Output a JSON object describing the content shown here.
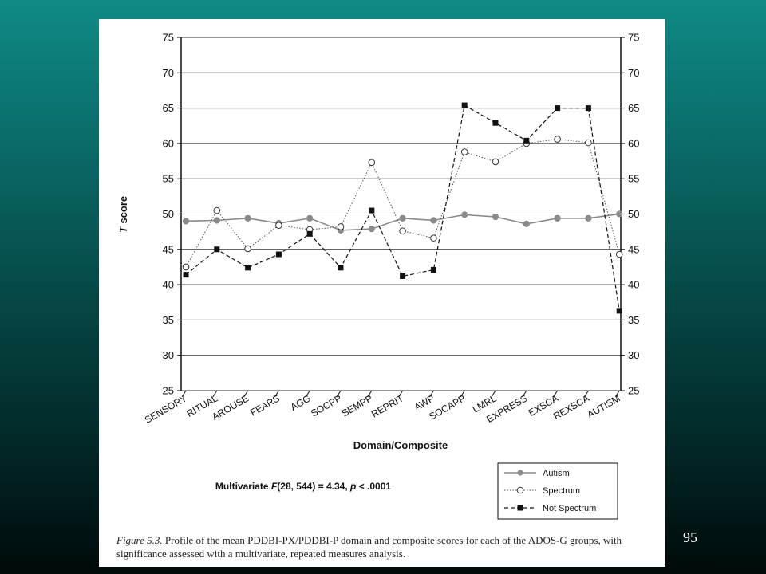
{
  "page": {
    "number": "95"
  },
  "caption": {
    "figure_label": "Figure 5.3.",
    "text": " Profile of the mean PDDBI-PX/PDDBI-P domain and composite scores for each of the ADOS-G groups, with significance assessed with a multivariate, repeated measures analysis."
  },
  "colors": {
    "autism": "#8a8a8a",
    "spectrum": "#555555",
    "not_spectrum": "#111111",
    "background_top": "#0f8a85",
    "background_bottom": "#000a0a"
  },
  "chart_data": {
    "type": "line",
    "title": "",
    "xlabel": "Domain/Composite",
    "ylabel_prefix": "T",
    "ylabel_suffix": " score",
    "ylim": [
      25,
      75
    ],
    "yticks": [
      25,
      30,
      35,
      40,
      45,
      50,
      55,
      60,
      65,
      70,
      75
    ],
    "grid": "horizontal",
    "legend_position": "bottom-right",
    "categories": [
      "SENSORY",
      "RITUAL",
      "AROUSE",
      "FEARS",
      "AGG",
      "SOCPP",
      "SEMPP",
      "REPRIT",
      "AWP",
      "SOCAPP",
      "LMRL",
      "EXPRESS",
      "EXSCA",
      "REXSCA",
      "AUTISM"
    ],
    "series": [
      {
        "name": "Autism",
        "marker": "filled-circle-gray",
        "line": "solid",
        "values": [
          49.0,
          49.1,
          49.4,
          48.7,
          49.4,
          47.7,
          47.9,
          49.4,
          49.1,
          49.9,
          49.6,
          48.6,
          49.4,
          49.4,
          50.0
        ]
      },
      {
        "name": "Spectrum",
        "marker": "open-circle",
        "line": "dotted",
        "values": [
          42.5,
          50.5,
          45.1,
          48.4,
          47.8,
          48.2,
          57.3,
          47.6,
          46.6,
          58.8,
          57.4,
          60.0,
          60.6,
          60.1,
          44.3
        ]
      },
      {
        "name": "Not Spectrum",
        "marker": "filled-square",
        "line": "dashed",
        "values": [
          41.4,
          45.0,
          42.4,
          44.3,
          47.2,
          42.4,
          50.5,
          41.2,
          42.1,
          65.4,
          62.9,
          60.4,
          65.0,
          65.0,
          36.3
        ]
      }
    ],
    "annotation": {
      "prefix": "Multivariate ",
      "stat": "F",
      "mid": "(28, 544) = 4.34, ",
      "p": "p",
      "suffix": " < .0001"
    }
  }
}
